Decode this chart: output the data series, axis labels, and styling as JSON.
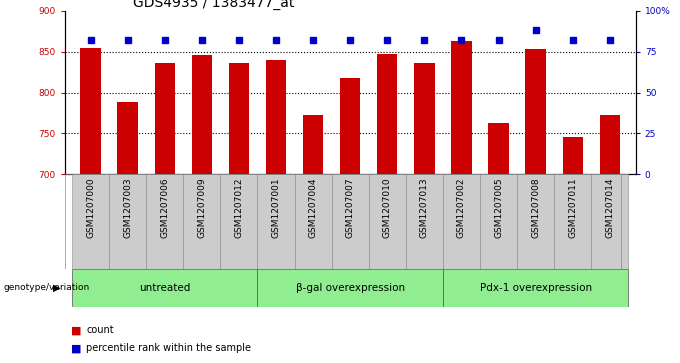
{
  "title": "GDS4935 / 1383477_at",
  "samples": [
    "GSM1207000",
    "GSM1207003",
    "GSM1207006",
    "GSM1207009",
    "GSM1207012",
    "GSM1207001",
    "GSM1207004",
    "GSM1207007",
    "GSM1207010",
    "GSM1207013",
    "GSM1207002",
    "GSM1207005",
    "GSM1207008",
    "GSM1207011",
    "GSM1207014"
  ],
  "counts": [
    855,
    788,
    836,
    846,
    836,
    840,
    773,
    818,
    847,
    836,
    863,
    763,
    853,
    745,
    773
  ],
  "percentiles": [
    82,
    82,
    82,
    82,
    82,
    82,
    82,
    82,
    82,
    82,
    82,
    82,
    88,
    82,
    82
  ],
  "groups": [
    {
      "label": "untreated",
      "start": 0,
      "end": 5
    },
    {
      "label": "β-gal overexpression",
      "start": 5,
      "end": 10
    },
    {
      "label": "Pdx-1 overexpression",
      "start": 10,
      "end": 15
    }
  ],
  "bar_color": "#cc0000",
  "dot_color": "#0000cc",
  "ylim_left": [
    700,
    900
  ],
  "ylim_right": [
    0,
    100
  ],
  "yticks_left": [
    700,
    750,
    800,
    850,
    900
  ],
  "yticks_right": [
    0,
    25,
    50,
    75,
    100
  ],
  "yticklabels_right": [
    "0",
    "25",
    "50",
    "75",
    "100%"
  ],
  "grid_values": [
    750,
    800,
    850
  ],
  "group_bg_color": "#90ee90",
  "sample_bg_color": "#cccccc",
  "legend_count_color": "#cc0000",
  "legend_dot_color": "#0000cc",
  "genotype_label": "genotype/variation",
  "legend_count_text": "count",
  "legend_percentile_text": "percentile rank within the sample",
  "bar_width": 0.55,
  "title_fontsize": 10,
  "tick_fontsize": 6.5,
  "label_fontsize": 7.5
}
